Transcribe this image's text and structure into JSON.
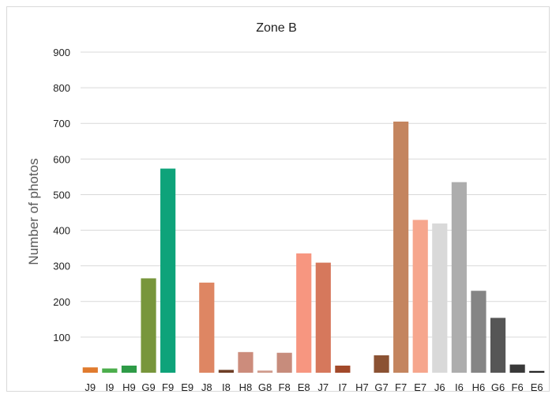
{
  "chart_data": {
    "type": "bar",
    "title": "Zone B",
    "xlabel": "",
    "ylabel": "Number of photos",
    "ylim": [
      0,
      900
    ],
    "yticks": [
      100,
      200,
      300,
      400,
      500,
      600,
      700,
      800,
      900
    ],
    "grid": true,
    "legend": "none",
    "categories": [
      "J9",
      "I9",
      "H9",
      "G9",
      "F9",
      "E9",
      "J8",
      "I8",
      "H8",
      "G8",
      "F8",
      "E8",
      "J7",
      "I7",
      "H7",
      "G7",
      "F7",
      "E7",
      "J6",
      "I6",
      "H6",
      "G6",
      "F6",
      "E6"
    ],
    "values": [
      15,
      12,
      20,
      265,
      573,
      0,
      253,
      8,
      58,
      6,
      56,
      335,
      309,
      20,
      0,
      49,
      705,
      429,
      419,
      535,
      230,
      154,
      23,
      5
    ],
    "colors": [
      "#e07b2e",
      "#4cae4c",
      "#2e9b47",
      "#78963c",
      "#0ea37a",
      "#ffffff",
      "#de8663",
      "#6e3e26",
      "#cc8c7c",
      "#cf9b8c",
      "#c78c7c",
      "#f79680",
      "#d6785c",
      "#a2492a",
      "#ffffff",
      "#8b5233",
      "#c4855f",
      "#f6a68d",
      "#d9d9d9",
      "#adadad",
      "#858585",
      "#565656",
      "#393939",
      "#262626"
    ]
  }
}
